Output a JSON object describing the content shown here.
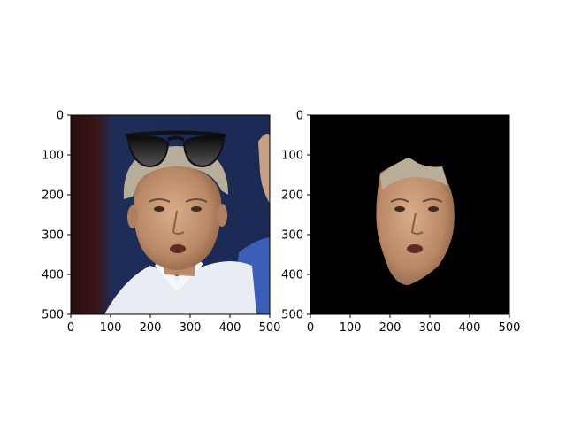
{
  "figure": {
    "background": "#ffffff"
  },
  "chart_data": [
    {
      "type": "image",
      "content": "photo of a grey-haired man wearing a white polo shirt, with a pair of black sunglasses overlaid above his head, against a blue background",
      "xlim": [
        0,
        500
      ],
      "ylim": [
        500,
        0
      ],
      "xticks": [
        0,
        100,
        200,
        300,
        400,
        500
      ],
      "yticks": [
        0,
        100,
        200,
        300,
        400,
        500
      ],
      "xtick_labels": [
        "0",
        "100",
        "200",
        "300",
        "400",
        "500"
      ],
      "ytick_labels": [
        "0",
        "100",
        "200",
        "300",
        "400",
        "500"
      ],
      "colors": {
        "background_blue": "#1e2d58",
        "left_strip": "#3a1414",
        "hair": "#b8ad98",
        "skin": "#c69a7a",
        "shirt": "#e8ecf3",
        "sleeve": "#3a5fb5",
        "sunglasses": "#111111"
      }
    },
    {
      "type": "image",
      "content": "segmented face of the same man on a black background",
      "xlim": [
        0,
        500
      ],
      "ylim": [
        500,
        0
      ],
      "xticks": [
        0,
        100,
        200,
        300,
        400,
        500
      ],
      "yticks": [
        0,
        100,
        200,
        300,
        400,
        500
      ],
      "xtick_labels": [
        "0",
        "100",
        "200",
        "300",
        "400",
        "500"
      ],
      "ytick_labels": [
        "0",
        "100",
        "200",
        "300",
        "400",
        "500"
      ],
      "colors": {
        "background": "#000000",
        "skin": "#c69a7a",
        "hair": "#b8ad98"
      }
    }
  ]
}
